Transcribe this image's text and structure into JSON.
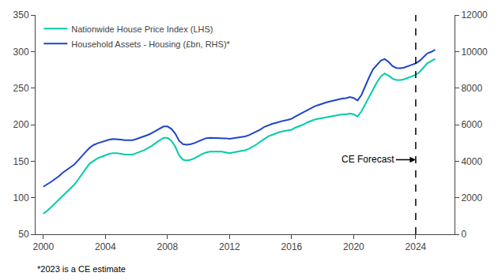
{
  "chart_data": {
    "type": "line",
    "x": [
      2000.0,
      2000.25,
      2000.5,
      2000.75,
      2001.0,
      2001.25,
      2001.5,
      2001.75,
      2002.0,
      2002.25,
      2002.5,
      2002.75,
      2003.0,
      2003.25,
      2003.5,
      2003.75,
      2004.0,
      2004.25,
      2004.5,
      2004.75,
      2005.0,
      2005.25,
      2005.5,
      2005.75,
      2006.0,
      2006.25,
      2006.5,
      2006.75,
      2007.0,
      2007.25,
      2007.5,
      2007.75,
      2008.0,
      2008.25,
      2008.5,
      2008.75,
      2009.0,
      2009.25,
      2009.5,
      2009.75,
      2010.0,
      2010.25,
      2010.5,
      2010.75,
      2011.0,
      2011.25,
      2011.5,
      2011.75,
      2012.0,
      2012.25,
      2012.5,
      2012.75,
      2013.0,
      2013.25,
      2013.5,
      2013.75,
      2014.0,
      2014.25,
      2014.5,
      2014.75,
      2015.0,
      2015.25,
      2015.5,
      2015.75,
      2016.0,
      2016.25,
      2016.5,
      2016.75,
      2017.0,
      2017.25,
      2017.5,
      2017.75,
      2018.0,
      2018.25,
      2018.5,
      2018.75,
      2019.0,
      2019.25,
      2019.5,
      2019.75,
      2020.0,
      2020.25,
      2020.5,
      2020.75,
      2021.0,
      2021.25,
      2021.5,
      2021.75,
      2022.0,
      2022.25,
      2022.5,
      2022.75,
      2023.0,
      2023.25,
      2023.5,
      2023.75,
      2024.0,
      2024.25,
      2024.5,
      2024.75,
      2025.0,
      2025.25
    ],
    "series": [
      {
        "name": "Nationwide House Price Index (LHS)",
        "color": "#00CCA8",
        "axis": "y",
        "values": [
          78,
          82,
          87,
          92,
          97,
          103,
          108,
          113,
          118,
          125,
          133,
          140,
          147,
          151,
          154,
          156,
          158,
          160,
          161,
          161,
          160,
          159,
          159,
          159,
          161,
          163,
          165,
          168,
          171,
          175,
          179,
          182,
          182,
          178,
          170,
          158,
          152,
          151,
          152,
          154,
          157,
          160,
          162,
          163,
          163,
          163,
          163,
          162,
          161,
          162,
          163,
          164,
          165,
          167,
          170,
          173,
          177,
          181,
          184,
          186,
          188,
          190,
          191,
          192,
          193,
          196,
          198,
          200,
          203,
          205,
          207,
          208,
          209,
          210,
          211,
          212,
          213,
          214,
          214,
          215,
          214,
          211,
          218,
          228,
          238,
          248,
          258,
          266,
          270,
          267,
          263,
          261,
          261,
          262,
          264,
          266,
          268,
          272,
          278,
          284,
          287,
          290
        ]
      },
      {
        "name": "Household Assets - Housing (£bn, RHS)*",
        "color": "#1E44CC",
        "axis": "y2",
        "values": [
          2600,
          2720,
          2870,
          3020,
          3170,
          3370,
          3530,
          3680,
          3820,
          4050,
          4310,
          4530,
          4750,
          4890,
          4980,
          5050,
          5110,
          5180,
          5210,
          5210,
          5180,
          5150,
          5150,
          5150,
          5210,
          5280,
          5350,
          5440,
          5540,
          5670,
          5800,
          5900,
          5900,
          5770,
          5510,
          5120,
          4930,
          4900,
          4930,
          4990,
          5090,
          5190,
          5260,
          5280,
          5280,
          5280,
          5270,
          5250,
          5220,
          5250,
          5290,
          5330,
          5350,
          5420,
          5520,
          5610,
          5740,
          5880,
          5970,
          6040,
          6100,
          6170,
          6220,
          6260,
          6320,
          6450,
          6560,
          6670,
          6790,
          6900,
          7010,
          7080,
          7160,
          7220,
          7270,
          7330,
          7370,
          7420,
          7450,
          7510,
          7460,
          7320,
          7620,
          8130,
          8600,
          9030,
          9280,
          9500,
          9590,
          9430,
          9210,
          9100,
          9090,
          9120,
          9200,
          9280,
          9350,
          9490,
          9700,
          9900,
          9980,
          10100
        ]
      }
    ],
    "xlim": [
      1999.5,
      2026.5
    ],
    "xticks": [
      2000,
      2004,
      2008,
      2012,
      2016,
      2020,
      2024
    ],
    "ylim": [
      50,
      350
    ],
    "yticks": [
      50,
      100,
      150,
      200,
      250,
      300,
      350
    ],
    "y2lim": [
      0,
      12000
    ],
    "y2ticks": [
      0,
      2000,
      4000,
      6000,
      8000,
      10000,
      12000
    ],
    "dashed_line": {
      "x": 2024.0
    },
    "annotations": [
      {
        "text": "CE Forecast",
        "x": 2024.0
      }
    ],
    "footnote": "*2023 is a CE estimate",
    "legend": "upper left",
    "grid": false
  }
}
